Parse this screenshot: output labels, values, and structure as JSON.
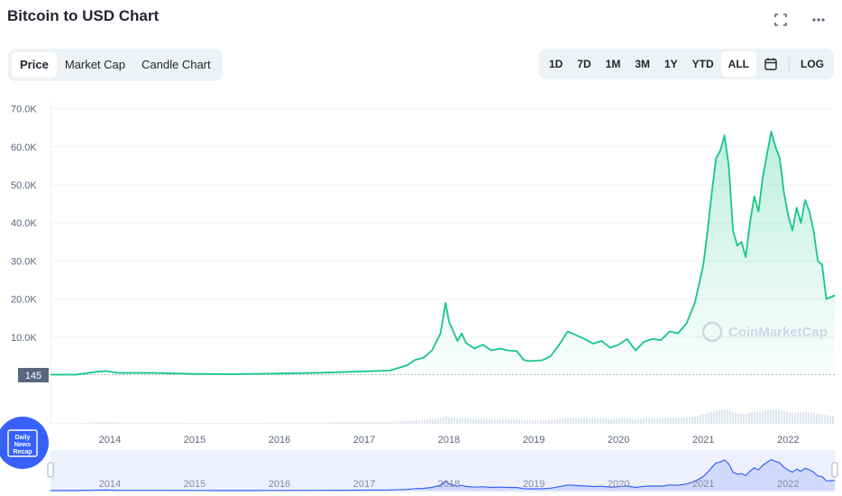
{
  "header": {
    "title": "Bitcoin to USD Chart"
  },
  "tabs": [
    {
      "label": "Price",
      "active": true
    },
    {
      "label": "Market Cap",
      "active": false
    },
    {
      "label": "Candle Chart",
      "active": false
    }
  ],
  "ranges": [
    {
      "label": "1D",
      "active": false
    },
    {
      "label": "7D",
      "active": false
    },
    {
      "label": "1M",
      "active": false
    },
    {
      "label": "3M",
      "active": false
    },
    {
      "label": "1Y",
      "active": false
    },
    {
      "label": "YTD",
      "active": false
    },
    {
      "label": "ALL",
      "active": true
    }
  ],
  "log_label": "LOG",
  "watermark": "CoinMarketCap",
  "badge": {
    "line1": "Daily",
    "line2": "News",
    "line3": "Recap"
  },
  "colors": {
    "line": "#16c784",
    "fill": "#16c784",
    "navigator": "#3861fb",
    "volume": "#cfd6e4"
  },
  "chart_data": {
    "type": "area",
    "title": "Bitcoin to USD Chart",
    "xlabel": "",
    "ylabel": "",
    "y_ticks": [
      "70.0K",
      "60.0K",
      "50.0K",
      "40.0K",
      "30.0K",
      "20.0K",
      "10.0K"
    ],
    "y_tick_values": [
      70000,
      60000,
      50000,
      40000,
      30000,
      20000,
      10000
    ],
    "x_ticks": [
      "2014",
      "2015",
      "2016",
      "2017",
      "2018",
      "2019",
      "2020",
      "2021",
      "2022"
    ],
    "ylim": [
      0,
      72500
    ],
    "xlim": [
      2013.3,
      2022.55
    ],
    "start_price_label": "145",
    "start_price": 145,
    "grid": true,
    "series": [
      {
        "x": [
          2013.3,
          2013.6,
          2013.85,
          2013.95,
          2014.1,
          2014.5,
          2015.0,
          2015.5,
          2016.0,
          2016.5,
          2017.0,
          2017.3,
          2017.5,
          2017.6,
          2017.7,
          2017.8,
          2017.9,
          2017.96,
          2018.0,
          2018.1,
          2018.15,
          2018.2,
          2018.3,
          2018.4,
          2018.5,
          2018.6,
          2018.7,
          2018.8,
          2018.88,
          2018.95,
          2019.1,
          2019.2,
          2019.3,
          2019.4,
          2019.5,
          2019.6,
          2019.7,
          2019.8,
          2019.9,
          2020.0,
          2020.1,
          2020.2,
          2020.3,
          2020.4,
          2020.5,
          2020.6,
          2020.7,
          2020.8,
          2020.9,
          2021.0,
          2021.05,
          2021.1,
          2021.15,
          2021.2,
          2021.25,
          2021.3,
          2021.35,
          2021.4,
          2021.45,
          2021.5,
          2021.55,
          2021.6,
          2021.65,
          2021.7,
          2021.75,
          2021.8,
          2021.85,
          2021.9,
          2021.95,
          2022.0,
          2022.05,
          2022.1,
          2022.15,
          2022.2,
          2022.25,
          2022.3,
          2022.35,
          2022.4,
          2022.45,
          2022.5,
          2022.55
        ],
        "values": [
          145,
          120,
          900,
          1100,
          600,
          600,
          300,
          250,
          430,
          650,
          1000,
          1200,
          2500,
          4000,
          4600,
          6500,
          11000,
          19000,
          14000,
          9000,
          11000,
          8500,
          7000,
          8000,
          6500,
          7000,
          6500,
          6300,
          4000,
          3700,
          3900,
          5000,
          8000,
          11500,
          10500,
          9500,
          8300,
          9000,
          7200,
          8000,
          9500,
          6500,
          8800,
          9500,
          9200,
          11500,
          11000,
          13500,
          19000,
          29000,
          38000,
          48000,
          57000,
          59000,
          63000,
          55000,
          38000,
          34000,
          35000,
          31000,
          40000,
          47000,
          43000,
          52000,
          58000,
          64000,
          60000,
          57000,
          48000,
          42000,
          38000,
          44000,
          40000,
          46000,
          43000,
          38000,
          30000,
          29000,
          20000,
          20500,
          21000
        ]
      }
    ],
    "nav_x_ticks": [
      "2014",
      "2015",
      "2016",
      "2017",
      "2018",
      "2019",
      "2020",
      "2021",
      "2022"
    ]
  }
}
